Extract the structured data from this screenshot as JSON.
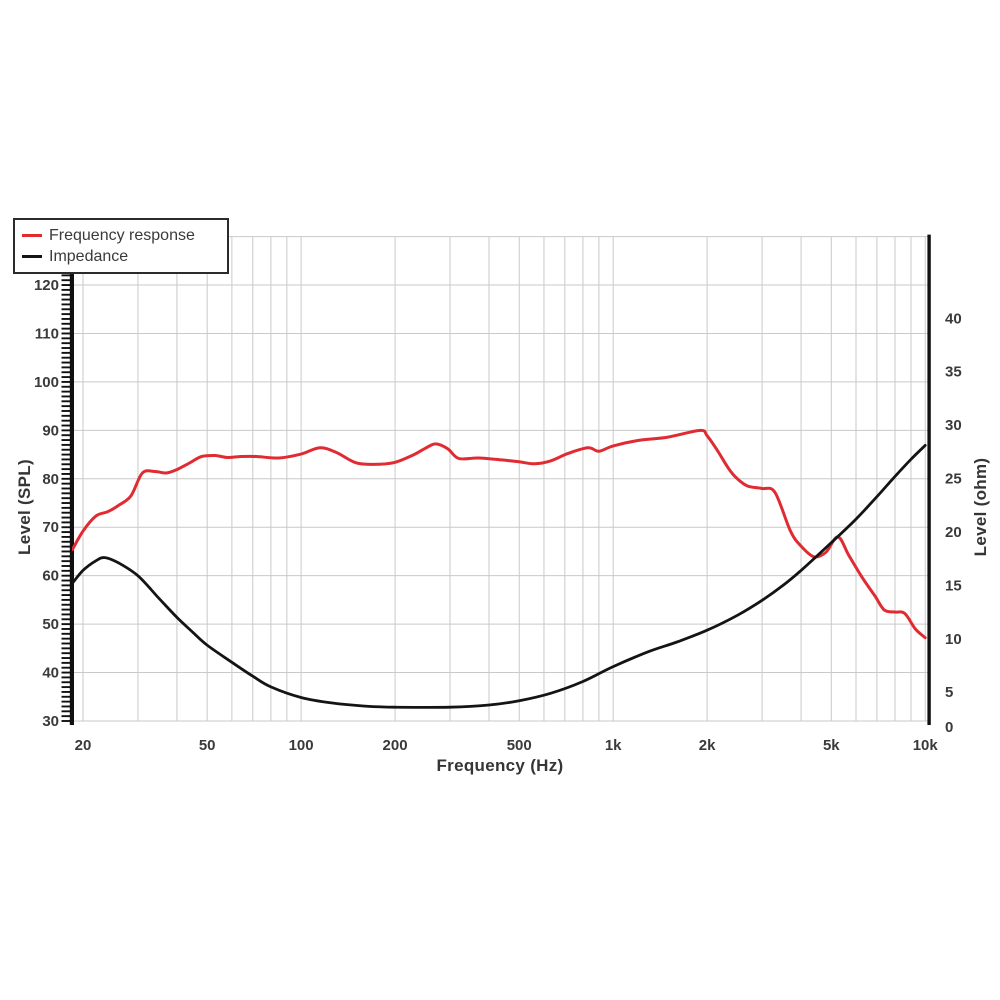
{
  "colors": {
    "frequency_response": "#e02b32",
    "impedance": "#141414",
    "grid": "#c9c9c9",
    "axis": "#111111",
    "text": "#3a3a3a"
  },
  "legend": {
    "items": [
      {
        "label": "Frequency response",
        "color": "#e02b32"
      },
      {
        "label": "Impedance",
        "color": "#141414"
      }
    ]
  },
  "chart_data": {
    "type": "line",
    "title": "",
    "xlabel": "Frequency (Hz)",
    "x_scale": "log",
    "grid": true,
    "legend_position": "top-left",
    "x_axis": {
      "title": "Frequency (Hz)",
      "min": 18.5,
      "max": 10000,
      "ticks": [
        {
          "value": 20,
          "label": "20"
        },
        {
          "value": 50,
          "label": "50"
        },
        {
          "value": 100,
          "label": "100"
        },
        {
          "value": 200,
          "label": "200"
        },
        {
          "value": 500,
          "label": "500"
        },
        {
          "value": 1000,
          "label": "1k"
        },
        {
          "value": 2000,
          "label": "2k"
        },
        {
          "value": 5000,
          "label": "5k"
        },
        {
          "value": 10000,
          "label": "10k"
        }
      ]
    },
    "y_left_axis": {
      "title": "Level (SPL)",
      "min": 30,
      "max": 130,
      "tick_values": [
        120,
        110,
        100,
        90,
        80,
        70,
        60,
        50,
        40,
        30
      ]
    },
    "y_right_axis": {
      "title": "Level (ohm)",
      "min": 0,
      "max": 40,
      "tick_values": [
        40,
        35,
        30,
        25,
        20,
        15,
        10,
        5,
        0
      ]
    },
    "series": [
      {
        "name": "Frequency response",
        "axis": "left",
        "unit": "dB SPL",
        "color": "#e02b32",
        "points": [
          [
            18.5,
            65.4
          ],
          [
            20,
            69.2
          ],
          [
            22,
            72.3
          ],
          [
            24,
            73.2
          ],
          [
            26,
            74.5
          ],
          [
            28.5,
            76.5
          ],
          [
            31,
            81.2
          ],
          [
            34,
            81.5
          ],
          [
            37,
            81.2
          ],
          [
            40,
            81.9
          ],
          [
            44,
            83.3
          ],
          [
            48,
            84.6
          ],
          [
            53,
            84.8
          ],
          [
            58,
            84.4
          ],
          [
            64,
            84.6
          ],
          [
            72,
            84.6
          ],
          [
            85,
            84.3
          ],
          [
            100,
            85.1
          ],
          [
            115,
            86.4
          ],
          [
            130,
            85.4
          ],
          [
            150,
            83.3
          ],
          [
            175,
            83.0
          ],
          [
            200,
            83.4
          ],
          [
            230,
            85.0
          ],
          [
            250,
            86.3
          ],
          [
            270,
            87.2
          ],
          [
            295,
            86.2
          ],
          [
            320,
            84.2
          ],
          [
            370,
            84.3
          ],
          [
            440,
            83.9
          ],
          [
            500,
            83.5
          ],
          [
            560,
            83.1
          ],
          [
            630,
            83.7
          ],
          [
            715,
            85.2
          ],
          [
            830,
            86.4
          ],
          [
            900,
            85.7
          ],
          [
            1000,
            86.8
          ],
          [
            1200,
            87.9
          ],
          [
            1500,
            88.6
          ],
          [
            1900,
            90.0
          ],
          [
            2000,
            88.9
          ],
          [
            2150,
            86.0
          ],
          [
            2350,
            82.0
          ],
          [
            2500,
            80.0
          ],
          [
            2700,
            78.5
          ],
          [
            3000,
            78.0
          ],
          [
            3300,
            77.2
          ],
          [
            3700,
            69.2
          ],
          [
            4000,
            66.1
          ],
          [
            4400,
            63.9
          ],
          [
            4800,
            64.8
          ],
          [
            5250,
            68.0
          ],
          [
            5700,
            64.1
          ],
          [
            6300,
            59.5
          ],
          [
            6900,
            55.8
          ],
          [
            7400,
            52.9
          ],
          [
            8000,
            52.5
          ],
          [
            8600,
            52.2
          ],
          [
            9300,
            49.0
          ],
          [
            10000,
            47.2
          ]
        ]
      },
      {
        "name": "Impedance",
        "axis": "right",
        "unit": "ohm",
        "color": "#141414",
        "points": [
          [
            18.5,
            15.2
          ],
          [
            20,
            16.4
          ],
          [
            22,
            17.3
          ],
          [
            23.5,
            17.6
          ],
          [
            26,
            17.1
          ],
          [
            30,
            15.9
          ],
          [
            35,
            13.8
          ],
          [
            40,
            12.0
          ],
          [
            45,
            10.6
          ],
          [
            50,
            9.4
          ],
          [
            60,
            7.8
          ],
          [
            70,
            6.5
          ],
          [
            80,
            5.5
          ],
          [
            100,
            4.5
          ],
          [
            125,
            4.0
          ],
          [
            160,
            3.7
          ],
          [
            200,
            3.6
          ],
          [
            300,
            3.6
          ],
          [
            400,
            3.8
          ],
          [
            500,
            4.2
          ],
          [
            630,
            4.9
          ],
          [
            800,
            6.0
          ],
          [
            1000,
            7.4
          ],
          [
            1300,
            8.8
          ],
          [
            1600,
            9.7
          ],
          [
            2000,
            10.8
          ],
          [
            2500,
            12.2
          ],
          [
            3000,
            13.6
          ],
          [
            3500,
            15.0
          ],
          [
            4000,
            16.4
          ],
          [
            5000,
            19.0
          ],
          [
            6000,
            21.2
          ],
          [
            7000,
            23.3
          ],
          [
            8000,
            25.2
          ],
          [
            9000,
            26.8
          ],
          [
            10000,
            28.1
          ]
        ]
      }
    ]
  }
}
